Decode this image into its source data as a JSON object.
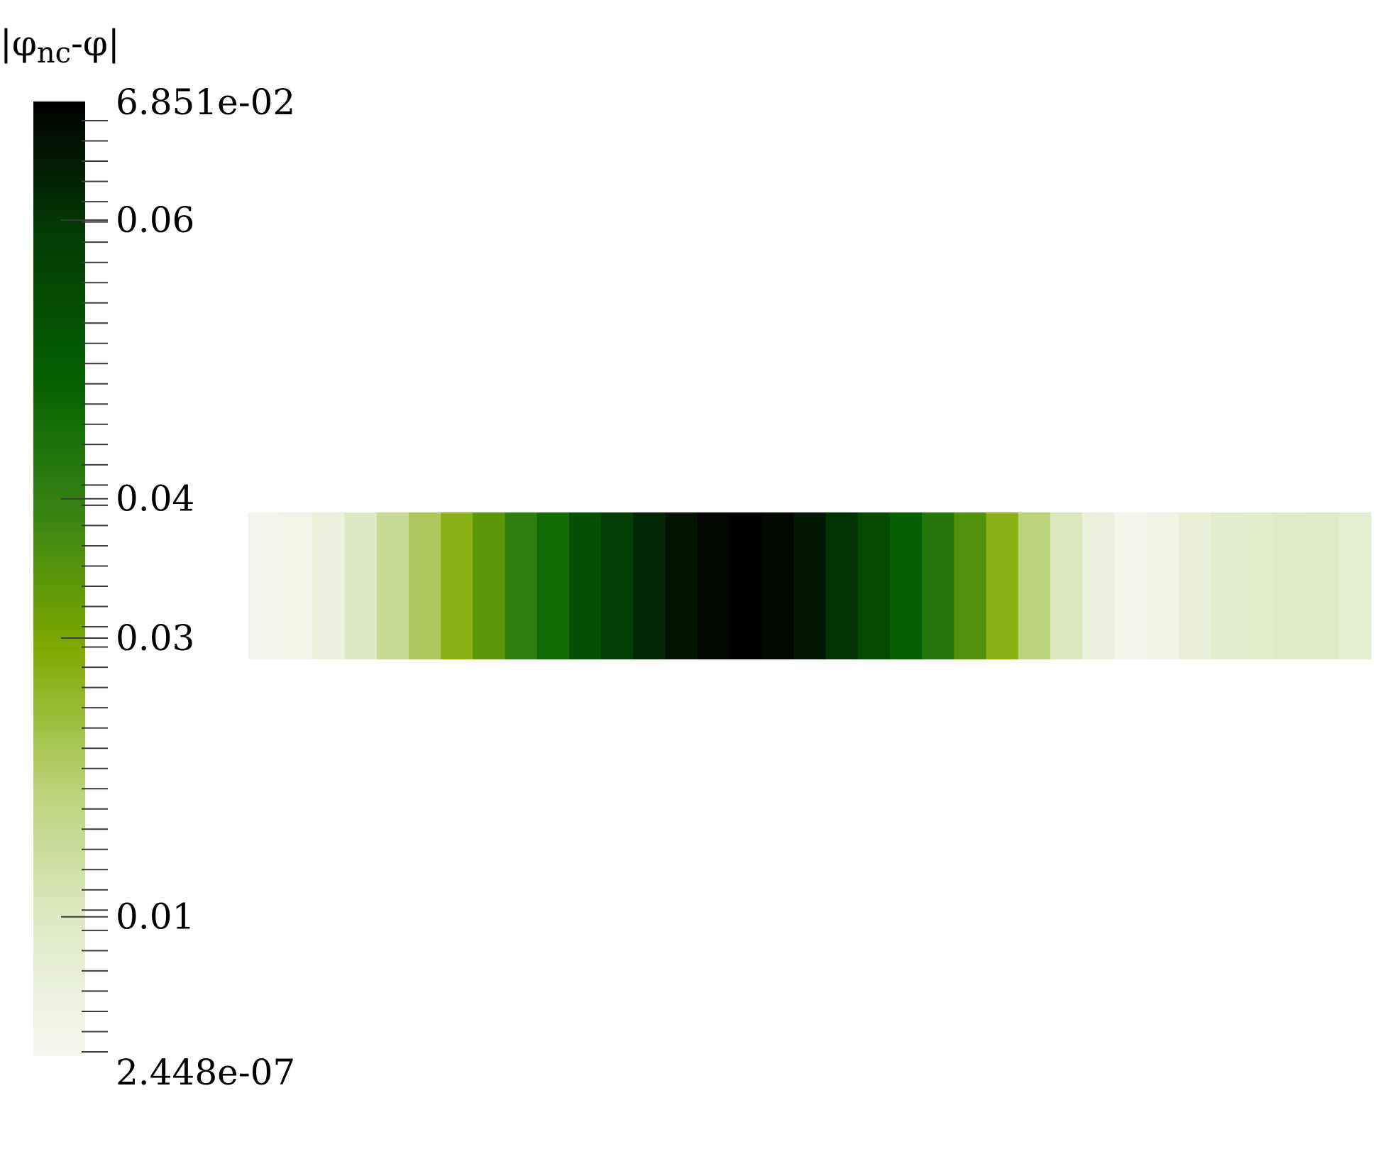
{
  "chart_data": {
    "type": "heatmap",
    "title": "",
    "legend": {
      "title": {
        "prefix": "|φ",
        "subscript": "nc",
        "suffix": "-φ|"
      },
      "placement": "left",
      "range": [
        2.448e-07,
        0.06851
      ],
      "max_label": "6.851e-02",
      "min_label": "2.448e-07",
      "labeled_ticks": [
        {
          "value": 0.06,
          "label": "0.06"
        },
        {
          "value": 0.04,
          "label": "0.04"
        },
        {
          "value": 0.03,
          "label": "0.03"
        },
        {
          "value": 0.01,
          "label": "0.01"
        }
      ],
      "colors": [
        "#f5f8ef",
        "#dfe9c4",
        "#b8d173",
        "#7ea800",
        "#368413",
        "#045f00",
        "#033d04",
        "#000000"
      ]
    },
    "strip": {
      "rows": 1,
      "columns": 35,
      "values": [
        0.0012,
        0.0018,
        0.0045,
        0.0095,
        0.0155,
        0.0215,
        0.0275,
        0.034,
        0.0405,
        0.046,
        0.0535,
        0.0585,
        0.0625,
        0.0655,
        0.0675,
        0.0685,
        0.0672,
        0.0645,
        0.0605,
        0.055,
        0.049,
        0.0425,
        0.0355,
        0.0275,
        0.019,
        0.0105,
        0.0045,
        0.0008,
        0.0025,
        0.0055,
        0.0075,
        0.0085,
        0.009,
        0.0088,
        0.0065
      ]
    }
  }
}
